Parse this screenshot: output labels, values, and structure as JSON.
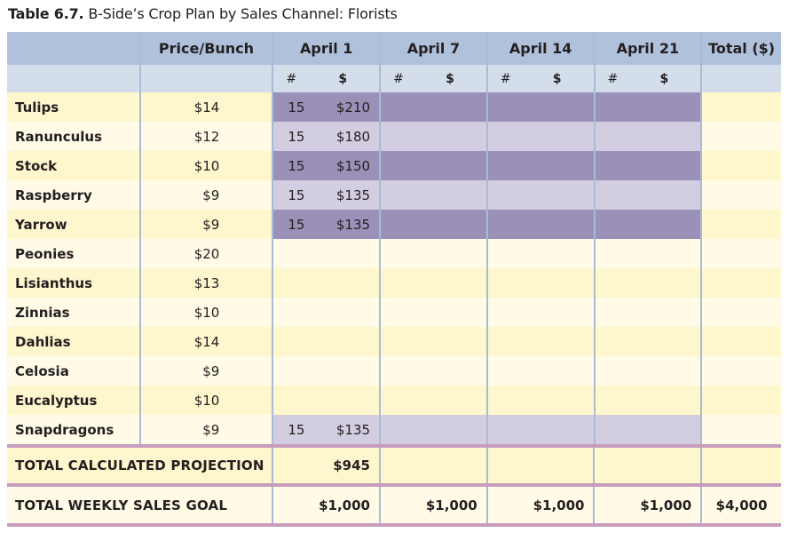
{
  "caption": {
    "label": "Table 6.7.",
    "title": " B-Side’s Crop Plan by Sales Channel: Florists"
  },
  "table": {
    "headers": {
      "name": "",
      "price": "Price/Bunch",
      "weeks": [
        "April 1",
        "April 7",
        "April 14",
        "April 21"
      ],
      "total": "Total ($)"
    },
    "subheaders": {
      "count_symbol": "#",
      "dollar_symbol": "$"
    },
    "rows": [
      {
        "name": "Tulips",
        "price": "$14",
        "weeks": [
          {
            "n": "15",
            "d": "$210"
          },
          {
            "n": "",
            "d": ""
          },
          {
            "n": "",
            "d": ""
          },
          {
            "n": "",
            "d": ""
          }
        ],
        "total": "",
        "shade": "dark"
      },
      {
        "name": "Ranunculus",
        "price": "$12",
        "weeks": [
          {
            "n": "15",
            "d": "$180"
          },
          {
            "n": "",
            "d": ""
          },
          {
            "n": "",
            "d": ""
          },
          {
            "n": "",
            "d": ""
          }
        ],
        "total": "",
        "shade": "light"
      },
      {
        "name": "Stock",
        "price": "$10",
        "weeks": [
          {
            "n": "15",
            "d": "$150"
          },
          {
            "n": "",
            "d": ""
          },
          {
            "n": "",
            "d": ""
          },
          {
            "n": "",
            "d": ""
          }
        ],
        "total": "",
        "shade": "dark"
      },
      {
        "name": "Raspberry",
        "price": "$9",
        "weeks": [
          {
            "n": "15",
            "d": "$135"
          },
          {
            "n": "",
            "d": ""
          },
          {
            "n": "",
            "d": ""
          },
          {
            "n": "",
            "d": ""
          }
        ],
        "total": "",
        "shade": "light"
      },
      {
        "name": "Yarrow",
        "price": "$9",
        "weeks": [
          {
            "n": "15",
            "d": "$135"
          },
          {
            "n": "",
            "d": ""
          },
          {
            "n": "",
            "d": ""
          },
          {
            "n": "",
            "d": ""
          }
        ],
        "total": "",
        "shade": "dark"
      },
      {
        "name": "Peonies",
        "price": "$20",
        "weeks": [
          {
            "n": "",
            "d": ""
          },
          {
            "n": "",
            "d": ""
          },
          {
            "n": "",
            "d": ""
          },
          {
            "n": "",
            "d": ""
          }
        ],
        "total": "",
        "shade": "none"
      },
      {
        "name": "Lisianthus",
        "price": "$13",
        "weeks": [
          {
            "n": "",
            "d": ""
          },
          {
            "n": "",
            "d": ""
          },
          {
            "n": "",
            "d": ""
          },
          {
            "n": "",
            "d": ""
          }
        ],
        "total": "",
        "shade": "none"
      },
      {
        "name": "Zinnias",
        "price": "$10",
        "weeks": [
          {
            "n": "",
            "d": ""
          },
          {
            "n": "",
            "d": ""
          },
          {
            "n": "",
            "d": ""
          },
          {
            "n": "",
            "d": ""
          }
        ],
        "total": "",
        "shade": "none"
      },
      {
        "name": "Dahlias",
        "price": "$14",
        "weeks": [
          {
            "n": "",
            "d": ""
          },
          {
            "n": "",
            "d": ""
          },
          {
            "n": "",
            "d": ""
          },
          {
            "n": "",
            "d": ""
          }
        ],
        "total": "",
        "shade": "none"
      },
      {
        "name": "Celosia",
        "price": "$9",
        "weeks": [
          {
            "n": "",
            "d": ""
          },
          {
            "n": "",
            "d": ""
          },
          {
            "n": "",
            "d": ""
          },
          {
            "n": "",
            "d": ""
          }
        ],
        "total": "",
        "shade": "none"
      },
      {
        "name": "Eucalyptus",
        "price": "$10",
        "weeks": [
          {
            "n": "",
            "d": ""
          },
          {
            "n": "",
            "d": ""
          },
          {
            "n": "",
            "d": ""
          },
          {
            "n": "",
            "d": ""
          }
        ],
        "total": "",
        "shade": "none"
      },
      {
        "name": "Snapdragons",
        "price": "$9",
        "weeks": [
          {
            "n": "15",
            "d": "$135"
          },
          {
            "n": "",
            "d": ""
          },
          {
            "n": "",
            "d": ""
          },
          {
            "n": "",
            "d": ""
          }
        ],
        "total": "",
        "shade": "light"
      }
    ],
    "projection": {
      "label": "TOTAL CALCULATED PROJECTION",
      "weeks": [
        "$945",
        "",
        "",
        ""
      ],
      "total": ""
    },
    "goal": {
      "label": "TOTAL WEEKLY SALES GOAL",
      "weeks": [
        "$1,000",
        "$1,000",
        "$1,000",
        "$1,000"
      ],
      "total": "$4,000"
    }
  },
  "colors": {
    "header_blue": "#b0c1dc",
    "subheader_blue": "#d3deea",
    "row_yellow": "#fef6cd",
    "row_cream": "#fffbe7",
    "planted_dark": "#9b90b8",
    "planted_light": "#d2cde0",
    "total_rule": "#c79cbe",
    "grid_line": "#a9bbd6"
  }
}
